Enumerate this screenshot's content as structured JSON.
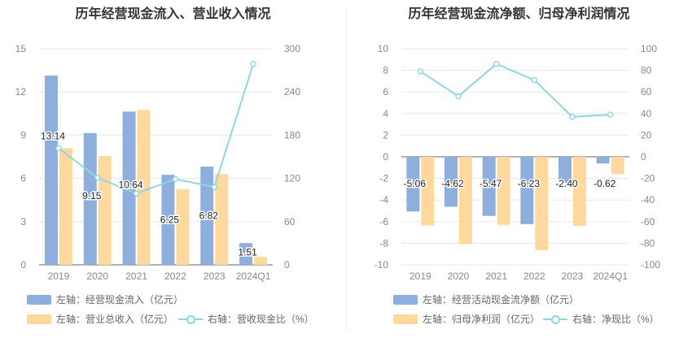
{
  "colors": {
    "bar1": "#8eaedd",
    "bar2": "#ffd89e",
    "line": "#8fd7de",
    "grid": "#e8e8e8",
    "axis_text": "#888888"
  },
  "chart_data": [
    {
      "type": "bar",
      "title": "历年经营现金流入、营业收入情况",
      "categories": [
        "2019",
        "2020",
        "2021",
        "2022",
        "2023",
        "2024Q1"
      ],
      "left_axis": {
        "min": 0,
        "max": 15,
        "ticks": [
          "0",
          "3",
          "6",
          "9",
          "12",
          "15"
        ]
      },
      "right_axis": {
        "min": 0,
        "max": 300,
        "ticks": [
          "0",
          "60",
          "120",
          "180",
          "240",
          "300"
        ]
      },
      "series": [
        {
          "name": "左轴：经营现金流入（亿元）",
          "axis": "left",
          "kind": "bar",
          "values": [
            13.14,
            9.15,
            10.64,
            6.25,
            6.82,
            1.51
          ],
          "labels": [
            "13.14",
            "9.15",
            "10.64",
            "6.25",
            "6.82",
            "1.51"
          ]
        },
        {
          "name": "左轴：营业总收入（亿元）",
          "axis": "left",
          "kind": "bar",
          "values": [
            8.1,
            7.55,
            10.75,
            5.25,
            6.3,
            0.55
          ]
        },
        {
          "name": "右轴：营收现金比（%）",
          "axis": "right",
          "kind": "line",
          "values": [
            162,
            121,
            99,
            119,
            108,
            279
          ]
        }
      ],
      "grid": true
    },
    {
      "type": "bar",
      "title": "历年经营现金流净额、归母净利润情况",
      "categories": [
        "2019",
        "2020",
        "2021",
        "2022",
        "2023",
        "2024Q1"
      ],
      "left_axis": {
        "min": -10,
        "max": 10,
        "ticks": [
          "-10",
          "-8",
          "-6",
          "-4",
          "-2",
          "0",
          "2",
          "4",
          "6",
          "8",
          "10"
        ]
      },
      "right_axis": {
        "min": -100,
        "max": 100,
        "ticks": [
          "-100",
          "-80",
          "-60",
          "-40",
          "-20",
          "0",
          "20",
          "40",
          "60",
          "80",
          "100"
        ]
      },
      "series": [
        {
          "name": "左轴：经营活动现金流净额（亿元）",
          "axis": "left",
          "kind": "bar",
          "values": [
            -5.06,
            -4.62,
            -5.47,
            -6.23,
            -2.4,
            -0.62
          ],
          "labels": [
            "-5.06",
            "-4.62",
            "-5.47",
            "-6.23",
            "-2.40",
            "-0.62"
          ]
        },
        {
          "name": "左轴：归母净利润（亿元）",
          "axis": "left",
          "kind": "bar",
          "values": [
            -6.35,
            -8.1,
            -6.3,
            -8.65,
            -6.4,
            -1.6
          ]
        },
        {
          "name": "右轴：净现比（%）",
          "axis": "right",
          "kind": "line",
          "values": [
            79,
            56,
            86,
            71,
            37,
            39
          ]
        }
      ],
      "grid": true
    }
  ]
}
